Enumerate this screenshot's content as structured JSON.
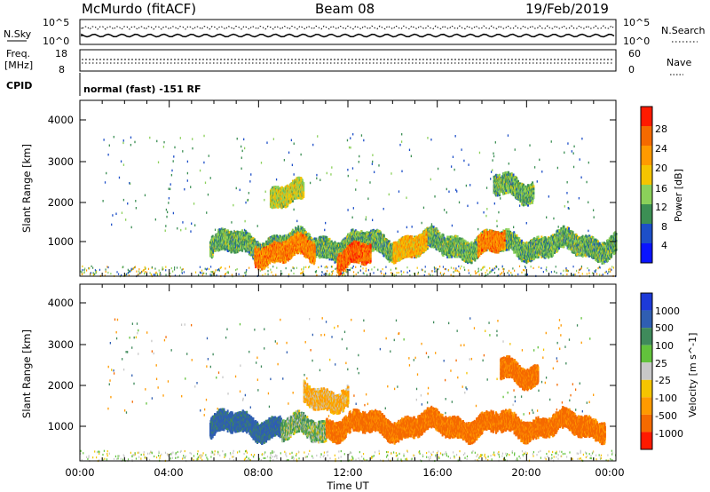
{
  "header": {
    "station": "McMurdo (fitACF)",
    "beam": "Beam 08",
    "date": "19/Feb/2019"
  },
  "noise_panel": {
    "left_label": "N.Sky",
    "left_ticks": [
      "10^5",
      "10^0"
    ],
    "right_label": "N.Search",
    "right_ticks": [
      "10^5",
      "10^0"
    ]
  },
  "freq_panel": {
    "left_label_1": "Freq.",
    "left_label_2": "[MHz]",
    "left_ticks": [
      "18",
      "8"
    ],
    "right_label": "Nave",
    "right_ticks": [
      "60",
      "0"
    ]
  },
  "cpid_panel": {
    "label": "CPID",
    "text": "normal (fast) -151 RF"
  },
  "x_axis": {
    "label": "Time UT",
    "ticks": [
      "00:00",
      "04:00",
      "08:00",
      "12:00",
      "16:00",
      "20:00",
      "00:00"
    ]
  },
  "power_panel": {
    "ylabel": "Slant Range [km]",
    "yticks": [
      "4000",
      "3000",
      "2000",
      "1000"
    ],
    "colorbar_label": "Power [dB]",
    "colorbar_ticks": [
      "28",
      "24",
      "20",
      "16",
      "12",
      "8",
      "4"
    ],
    "colors": [
      "#0a14ff",
      "#1d4fc8",
      "#3c8f54",
      "#8bd05a",
      "#f5c400",
      "#ff9a00",
      "#f56a00",
      "#ff1a00"
    ]
  },
  "velocity_panel": {
    "ylabel": "Slant Range [km]",
    "yticks": [
      "4000",
      "3000",
      "2000",
      "1000"
    ],
    "colorbar_label": "Velocity [m s^-1]",
    "colorbar_ticks": [
      "1000",
      "500",
      "100",
      "25",
      "-25",
      "-100",
      "-500",
      "-1000"
    ],
    "colors": [
      "#1d3ad8",
      "#2f5eb2",
      "#3f8a5b",
      "#62c23c",
      "#c8c8c8",
      "#f5c400",
      "#ff9a00",
      "#f56a00",
      "#ff1a00"
    ]
  },
  "chart_data": {
    "type": "heatmap",
    "x_range_hours": [
      0,
      24
    ],
    "y_range_km": [
      180,
      4500
    ],
    "power_bands": [
      {
        "t0": 5.8,
        "t1": 24.0,
        "range_km": 1000,
        "value_db": 12
      },
      {
        "t0": 7.8,
        "t1": 10.5,
        "range_km": 850,
        "value_db": 24
      },
      {
        "t0": 11.5,
        "t1": 13.0,
        "range_km": 700,
        "value_db": 26
      },
      {
        "t0": 14.0,
        "t1": 15.5,
        "range_km": 1000,
        "value_db": 20
      },
      {
        "t0": 17.8,
        "t1": 19.0,
        "range_km": 1000,
        "value_db": 24
      },
      {
        "t0": 8.5,
        "t1": 10.0,
        "range_km": 2200,
        "value_db": 16
      },
      {
        "t0": 18.5,
        "t1": 20.3,
        "range_km": 2400,
        "value_db": 12
      }
    ],
    "velocity_bands": [
      {
        "t0": 5.8,
        "t1": 9.0,
        "range_km": 1100,
        "value_ms": 300
      },
      {
        "t0": 9.0,
        "t1": 11.0,
        "range_km": 1000,
        "value_ms": 50
      },
      {
        "t0": 11.0,
        "t1": 23.5,
        "range_km": 1100,
        "value_ms": -300
      },
      {
        "t0": 10.0,
        "t1": 12.0,
        "range_km": 1800,
        "value_ms": -80
      },
      {
        "t0": 18.8,
        "t1": 20.5,
        "range_km": 2400,
        "value_ms": -300
      }
    ]
  }
}
